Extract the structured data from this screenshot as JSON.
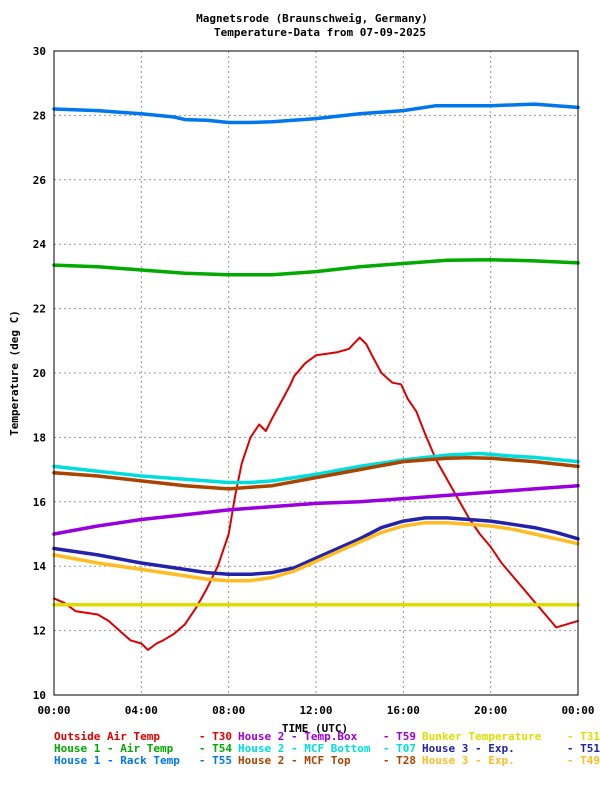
{
  "chart_data": {
    "type": "line",
    "title": "Magnetsrode (Braunschweig, Germany)",
    "subtitle": "Temperature-Data from 07-09-2025",
    "xlabel": "TIME (UTC)",
    "ylabel": "Temperature (deg C)",
    "xlim": [
      0,
      24
    ],
    "ylim": [
      10,
      30
    ],
    "x_ticks": [
      "00:00",
      "04:00",
      "08:00",
      "12:00",
      "16:00",
      "20:00",
      "00:00"
    ],
    "y_ticks": [
      "10",
      "12",
      "14",
      "16",
      "18",
      "20",
      "22",
      "24",
      "26",
      "28",
      "30"
    ],
    "grid": true,
    "legend_position": "bottom",
    "series": [
      {
        "name": "Outside Air Temp",
        "code": "T30",
        "color": "#dd0000",
        "points": [
          [
            0,
            13.0
          ],
          [
            0.5,
            12.85
          ],
          [
            1,
            12.6
          ],
          [
            1.5,
            12.55
          ],
          [
            2,
            12.5
          ],
          [
            2.5,
            12.3
          ],
          [
            3,
            12.0
          ],
          [
            3.5,
            11.7
          ],
          [
            4,
            11.6
          ],
          [
            4.3,
            11.4
          ],
          [
            4.7,
            11.6
          ],
          [
            5,
            11.7
          ],
          [
            5.5,
            11.9
          ],
          [
            6,
            12.2
          ],
          [
            6.5,
            12.7
          ],
          [
            7,
            13.3
          ],
          [
            7.5,
            14.0
          ],
          [
            8,
            15.0
          ],
          [
            8.3,
            16.2
          ],
          [
            8.6,
            17.2
          ],
          [
            9,
            18.0
          ],
          [
            9.4,
            18.4
          ],
          [
            9.7,
            18.2
          ],
          [
            10,
            18.6
          ],
          [
            10.4,
            19.1
          ],
          [
            10.8,
            19.6
          ],
          [
            11,
            19.9
          ],
          [
            11.5,
            20.3
          ],
          [
            12,
            20.55
          ],
          [
            12.5,
            20.6
          ],
          [
            13,
            20.65
          ],
          [
            13.5,
            20.75
          ],
          [
            14,
            21.1
          ],
          [
            14.3,
            20.9
          ],
          [
            14.6,
            20.5
          ],
          [
            15,
            20.0
          ],
          [
            15.5,
            19.7
          ],
          [
            15.9,
            19.65
          ],
          [
            16.2,
            19.2
          ],
          [
            16.6,
            18.8
          ],
          [
            17,
            18.1
          ],
          [
            17.5,
            17.3
          ],
          [
            18,
            16.7
          ],
          [
            18.5,
            16.1
          ],
          [
            19,
            15.5
          ],
          [
            19.5,
            15.0
          ],
          [
            20,
            14.6
          ],
          [
            20.5,
            14.1
          ],
          [
            21,
            13.7
          ],
          [
            21.5,
            13.3
          ],
          [
            22,
            12.9
          ],
          [
            22.5,
            12.5
          ],
          [
            23,
            12.1
          ],
          [
            23.5,
            12.2
          ],
          [
            24,
            12.3
          ]
        ]
      },
      {
        "name": "House 1 - Air Temp",
        "code": "T54",
        "color": "#00aa00",
        "points": [
          [
            0,
            23.35
          ],
          [
            2,
            23.3
          ],
          [
            4,
            23.2
          ],
          [
            6,
            23.1
          ],
          [
            8,
            23.05
          ],
          [
            10,
            23.05
          ],
          [
            12,
            23.15
          ],
          [
            14,
            23.3
          ],
          [
            16,
            23.4
          ],
          [
            18,
            23.5
          ],
          [
            20,
            23.52
          ],
          [
            22,
            23.48
          ],
          [
            24,
            23.42
          ]
        ]
      },
      {
        "name": "House 1 - Rack Temp",
        "code": "T55",
        "color": "#0077ee",
        "points": [
          [
            0,
            28.2
          ],
          [
            2,
            28.15
          ],
          [
            4,
            28.05
          ],
          [
            5.5,
            27.95
          ],
          [
            6,
            27.87
          ],
          [
            7,
            27.85
          ],
          [
            8,
            27.78
          ],
          [
            9,
            27.78
          ],
          [
            10,
            27.8
          ],
          [
            12,
            27.9
          ],
          [
            14,
            28.05
          ],
          [
            16,
            28.15
          ],
          [
            17.5,
            28.3
          ],
          [
            20,
            28.3
          ],
          [
            22,
            28.35
          ],
          [
            24,
            28.25
          ]
        ]
      },
      {
        "name": "House 2 - Temp.Box",
        "code": "T59",
        "color": "#9900dd",
        "points": [
          [
            0,
            15.0
          ],
          [
            2,
            15.25
          ],
          [
            4,
            15.45
          ],
          [
            6,
            15.6
          ],
          [
            8,
            15.75
          ],
          [
            10,
            15.85
          ],
          [
            12,
            15.95
          ],
          [
            14,
            16.0
          ],
          [
            16,
            16.1
          ],
          [
            18,
            16.2
          ],
          [
            20,
            16.3
          ],
          [
            22,
            16.4
          ],
          [
            24,
            16.5
          ]
        ]
      },
      {
        "name": "House 2 - MCF Bottom",
        "code": "T07",
        "color": "#00dddd",
        "points": [
          [
            0,
            17.1
          ],
          [
            2,
            16.95
          ],
          [
            4,
            16.8
          ],
          [
            6,
            16.7
          ],
          [
            8,
            16.6
          ],
          [
            9,
            16.6
          ],
          [
            10,
            16.65
          ],
          [
            12,
            16.85
          ],
          [
            14,
            17.1
          ],
          [
            16,
            17.3
          ],
          [
            18,
            17.45
          ],
          [
            19.5,
            17.5
          ],
          [
            21,
            17.42
          ],
          [
            22,
            17.38
          ],
          [
            24,
            17.25
          ]
        ]
      },
      {
        "name": "House 2 - MCF Top",
        "code": "T28",
        "color": "#aa4400",
        "points": [
          [
            0,
            16.9
          ],
          [
            2,
            16.8
          ],
          [
            4,
            16.65
          ],
          [
            6,
            16.5
          ],
          [
            8,
            16.4
          ],
          [
            9,
            16.45
          ],
          [
            10,
            16.5
          ],
          [
            12,
            16.75
          ],
          [
            14,
            17.0
          ],
          [
            16,
            17.25
          ],
          [
            18,
            17.35
          ],
          [
            19,
            17.37
          ],
          [
            20,
            17.35
          ],
          [
            22,
            17.25
          ],
          [
            24,
            17.1
          ]
        ]
      },
      {
        "name": "Bunker Temperature",
        "code": "T31",
        "color": "#dddd00",
        "points": [
          [
            0,
            12.8
          ],
          [
            24,
            12.8
          ]
        ]
      },
      {
        "name": "House 3 - Exp.",
        "code": "T51",
        "color": "#2222aa",
        "points": [
          [
            0,
            14.55
          ],
          [
            2,
            14.35
          ],
          [
            4,
            14.1
          ],
          [
            6,
            13.9
          ],
          [
            7,
            13.8
          ],
          [
            8,
            13.75
          ],
          [
            9,
            13.75
          ],
          [
            10,
            13.8
          ],
          [
            11,
            13.95
          ],
          [
            12,
            14.25
          ],
          [
            13,
            14.55
          ],
          [
            14,
            14.85
          ],
          [
            15,
            15.2
          ],
          [
            16,
            15.4
          ],
          [
            17,
            15.5
          ],
          [
            18,
            15.5
          ],
          [
            19,
            15.45
          ],
          [
            20,
            15.4
          ],
          [
            21,
            15.3
          ],
          [
            22,
            15.2
          ],
          [
            23,
            15.05
          ],
          [
            24,
            14.85
          ]
        ]
      },
      {
        "name": "House 3 - Exp.",
        "code": "T49",
        "color": "#ffbb22",
        "points": [
          [
            0,
            14.35
          ],
          [
            2,
            14.1
          ],
          [
            4,
            13.9
          ],
          [
            6,
            13.7
          ],
          [
            7,
            13.6
          ],
          [
            8,
            13.55
          ],
          [
            9,
            13.55
          ],
          [
            10,
            13.65
          ],
          [
            11,
            13.85
          ],
          [
            12,
            14.15
          ],
          [
            13,
            14.45
          ],
          [
            14,
            14.75
          ],
          [
            15,
            15.05
          ],
          [
            16,
            15.25
          ],
          [
            17,
            15.35
          ],
          [
            18,
            15.35
          ],
          [
            19,
            15.3
          ],
          [
            20,
            15.25
          ],
          [
            21,
            15.15
          ],
          [
            22,
            15.0
          ],
          [
            23,
            14.85
          ],
          [
            24,
            14.7
          ]
        ]
      }
    ]
  }
}
